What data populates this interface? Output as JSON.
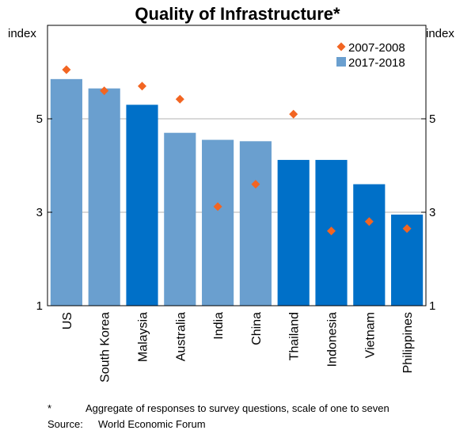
{
  "chart_data": {
    "type": "bar",
    "title": "Quality of Infrastructure*",
    "ylabel_left": "index",
    "ylabel_right": "index",
    "ylim": [
      1,
      7
    ],
    "yticks": [
      1,
      3,
      5
    ],
    "categories": [
      "US",
      "South Korea",
      "Malaysia",
      "Australia",
      "India",
      "China",
      "Thailand",
      "Indonesia",
      "Vietnam",
      "Philippines"
    ],
    "series": [
      {
        "name": "2017-2018",
        "type": "bar",
        "values": [
          5.85,
          5.65,
          5.3,
          4.7,
          4.55,
          4.52,
          4.12,
          4.12,
          3.6,
          2.95
        ],
        "colors": [
          "#6a9fcf",
          "#6a9fcf",
          "#0070c8",
          "#6a9fcf",
          "#6a9fcf",
          "#6a9fcf",
          "#0070c8",
          "#0070c8",
          "#0070c8",
          "#0070c8"
        ]
      },
      {
        "name": "2007-2008",
        "type": "marker",
        "values": [
          6.05,
          5.6,
          5.7,
          5.42,
          3.12,
          3.6,
          5.1,
          2.6,
          2.8,
          2.65
        ],
        "color": "#f26522"
      }
    ],
    "legend": {
      "position": "top-right",
      "order": [
        "2007-2008",
        "2017-2018"
      ]
    }
  },
  "footnotes": {
    "note_marker": "*",
    "note_text": "Aggregate of responses to survey questions, scale of one to seven",
    "source_label": "Source:",
    "source_text": "World Economic Forum"
  },
  "colors": {
    "bar_light": "#6a9fcf",
    "bar_dark": "#0070c8",
    "marker": "#f26522",
    "grid": "#b3b3b3"
  }
}
